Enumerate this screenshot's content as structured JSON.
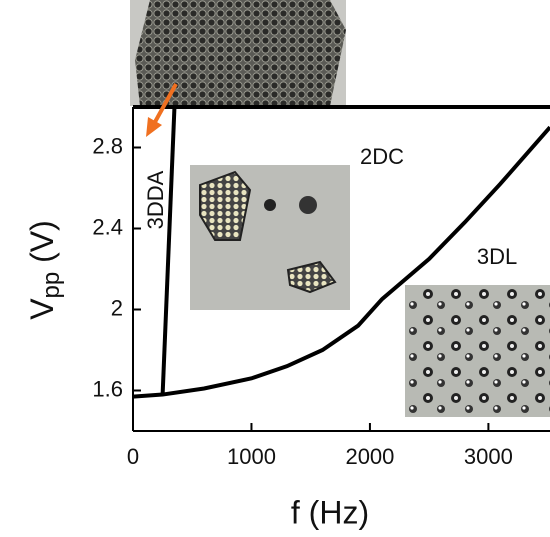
{
  "chart_data": {
    "type": "line",
    "x_label": "f (Hz)",
    "y_label": [
      "V",
      "pp",
      " (V)"
    ],
    "series": [
      {
        "color": "#000000",
        "x": [
          0,
          250,
          600,
          1000,
          1300,
          1600,
          1900,
          2100,
          2200,
          2500,
          2800,
          3100,
          3400,
          3520
        ],
        "values": [
          1.57,
          1.58,
          1.61,
          1.66,
          1.72,
          1.8,
          1.92,
          2.05,
          2.1,
          2.25,
          2.43,
          2.62,
          2.82,
          2.9
        ]
      },
      {
        "color": "#000000",
        "x": [
          250,
          350
        ],
        "values": [
          1.58,
          3.0
        ]
      }
    ],
    "annotations": [
      "2DC",
      "3DDA",
      "3DL"
    ],
    "xlim": [
      0,
      3520
    ],
    "ylim": [
      1.4,
      3.0
    ],
    "xticks": [
      0,
      1000,
      2000,
      3000
    ],
    "yticks": [
      1.6,
      2.0,
      2.4,
      2.8
    ],
    "arrow_color": "#f07020"
  }
}
